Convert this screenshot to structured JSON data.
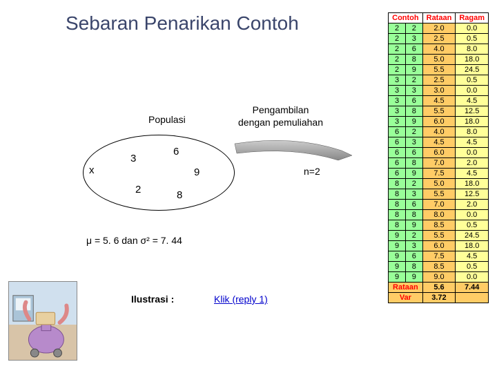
{
  "title": "Sebaran Penarikan Contoh",
  "populasi_label": "Populasi",
  "pengambilan_line1": "Pengambilan",
  "pengambilan_line2": "dengan pemuliahan",
  "ellipse": {
    "x": "x",
    "n3": "3",
    "n6": "6",
    "n9": "9",
    "n2": "2",
    "n8": "8"
  },
  "n_label": "n=2",
  "stats_text": "μ = 5. 6  dan  σ² = 7. 44",
  "ilustrasi_label": "Ilustrasi :",
  "link_text": "Klik (reply 1)",
  "table": {
    "headers": [
      "Contoh",
      "Rataan",
      "Ragam"
    ],
    "rows": [
      {
        "c": [
          "2",
          "2"
        ],
        "r": "2.0",
        "g": "0.0"
      },
      {
        "c": [
          "2",
          "3"
        ],
        "r": "2.5",
        "g": "0.5"
      },
      {
        "c": [
          "2",
          "6"
        ],
        "r": "4.0",
        "g": "8.0"
      },
      {
        "c": [
          "2",
          "8"
        ],
        "r": "5.0",
        "g": "18.0"
      },
      {
        "c": [
          "2",
          "9"
        ],
        "r": "5.5",
        "g": "24.5"
      },
      {
        "c": [
          "3",
          "2"
        ],
        "r": "2.5",
        "g": "0.5"
      },
      {
        "c": [
          "3",
          "3"
        ],
        "r": "3.0",
        "g": "0.0"
      },
      {
        "c": [
          "3",
          "6"
        ],
        "r": "4.5",
        "g": "4.5"
      },
      {
        "c": [
          "3",
          "8"
        ],
        "r": "5.5",
        "g": "12.5"
      },
      {
        "c": [
          "3",
          "9"
        ],
        "r": "6.0",
        "g": "18.0"
      },
      {
        "c": [
          "6",
          "2"
        ],
        "r": "4.0",
        "g": "8.0"
      },
      {
        "c": [
          "6",
          "3"
        ],
        "r": "4.5",
        "g": "4.5"
      },
      {
        "c": [
          "6",
          "6"
        ],
        "r": "6.0",
        "g": "0.0"
      },
      {
        "c": [
          "6",
          "8"
        ],
        "r": "7.0",
        "g": "2.0"
      },
      {
        "c": [
          "6",
          "9"
        ],
        "r": "7.5",
        "g": "4.5"
      },
      {
        "c": [
          "8",
          "2"
        ],
        "r": "5.0",
        "g": "18.0"
      },
      {
        "c": [
          "8",
          "3"
        ],
        "r": "5.5",
        "g": "12.5"
      },
      {
        "c": [
          "8",
          "6"
        ],
        "r": "7.0",
        "g": "2.0"
      },
      {
        "c": [
          "8",
          "8"
        ],
        "r": "8.0",
        "g": "0.0"
      },
      {
        "c": [
          "8",
          "9"
        ],
        "r": "8.5",
        "g": "0.5"
      },
      {
        "c": [
          "9",
          "2"
        ],
        "r": "5.5",
        "g": "24.5"
      },
      {
        "c": [
          "9",
          "3"
        ],
        "r": "6.0",
        "g": "18.0"
      },
      {
        "c": [
          "9",
          "6"
        ],
        "r": "7.5",
        "g": "4.5"
      },
      {
        "c": [
          "9",
          "8"
        ],
        "r": "8.5",
        "g": "0.5"
      },
      {
        "c": [
          "9",
          "9"
        ],
        "r": "9.0",
        "g": "0.0"
      }
    ],
    "summary": [
      {
        "label": "Rataan",
        "r": "5.6",
        "g": "7.44"
      },
      {
        "label": "Var",
        "r": "3.72",
        "g": ""
      }
    ],
    "colors": {
      "header_text": "#ff0000",
      "contoh_bg": "#99ff99",
      "rataan_bg": "#ffcc66",
      "ragam_bg": "#ffff99",
      "summary_bg": "#ffcc66"
    }
  }
}
